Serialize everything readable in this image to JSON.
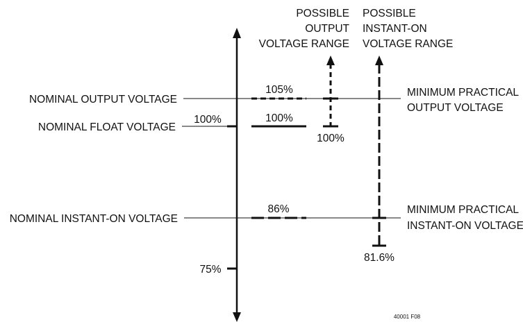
{
  "labels": {
    "nominal_output": "NOMINAL OUTPUT VOLTAGE",
    "nominal_float": "NOMINAL FLOAT VOLTAGE",
    "nominal_instant_on": "NOMINAL INSTANT-ON VOLTAGE",
    "min_output_1": "MINIMUM PRACTICAL",
    "min_output_2": "OUTPUT VOLTAGE",
    "min_instant_1": "MINIMUM PRACTICAL",
    "min_instant_2": "INSTANT-ON VOLTAGE",
    "output_range_1": "POSSIBLE",
    "output_range_2": "OUTPUT",
    "output_range_3": "VOLTAGE RANGE",
    "instant_range_1": "POSSIBLE",
    "instant_range_2": "INSTANT-ON",
    "instant_range_3": "VOLTAGE RANGE"
  },
  "percents": {
    "p105": "105%",
    "p100_axis": "100%",
    "p100_bar": "100%",
    "p100_bottom": "100%",
    "p86": "86%",
    "p816": "81.6%",
    "p75": "75%"
  },
  "figure_id": "40001 F08"
}
